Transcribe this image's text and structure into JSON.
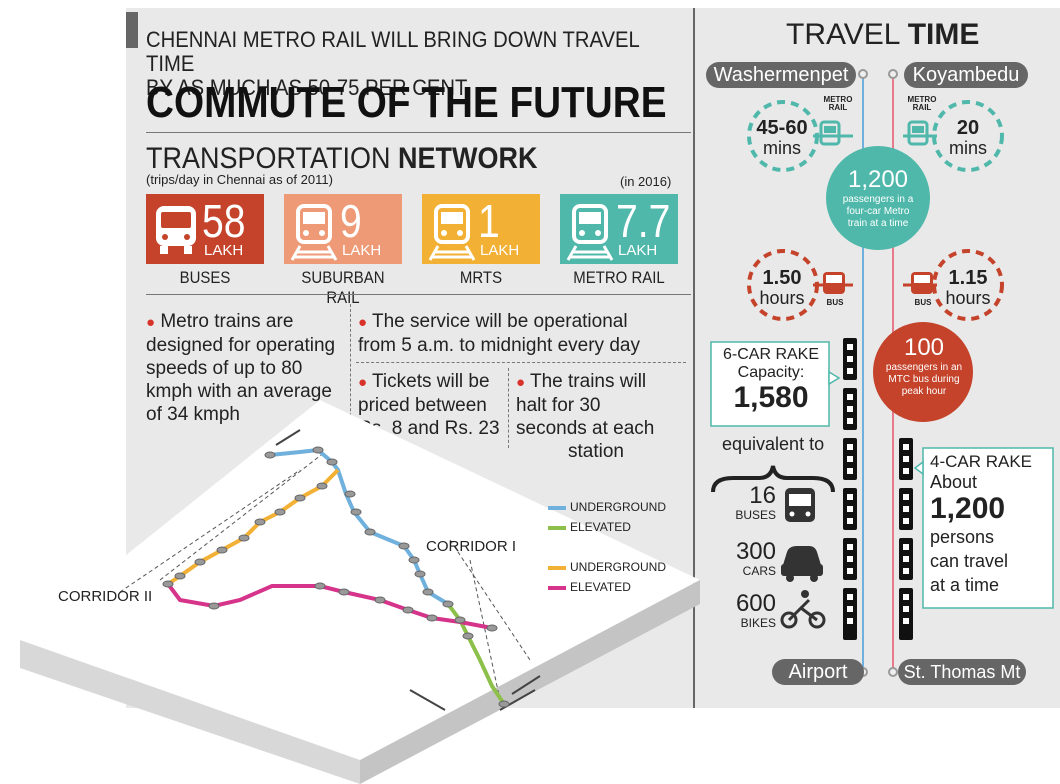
{
  "header": {
    "headline_line1": "CHENNAI METRO RAIL WILL BRING DOWN TRAVEL TIME",
    "headline_line2": "BY AS MUCH AS 50-75 PER CENT",
    "title": "COMMUTE OF THE FUTURE"
  },
  "network": {
    "title_light": "TRANSPORTATION ",
    "title_bold": "NETWORK",
    "subtitle": "(trips/day in Chennai as of 2011)",
    "note_2016": "(in 2016)",
    "modes": [
      {
        "value": "58",
        "unit": "LAKH",
        "label": "BUSES",
        "color": "#c4432a"
      },
      {
        "value": "9",
        "unit": "LAKH",
        "label": "SUBURBAN RAIL",
        "color": "#ef9a76"
      },
      {
        "value": "1",
        "unit": "LAKH",
        "label": "MRTS",
        "color": "#f2b035"
      },
      {
        "value": "7.7",
        "unit": "LAKH",
        "label": "METRO RAIL",
        "color": "#4fb8ab"
      }
    ]
  },
  "facts": {
    "speed": [
      "Metro trains are",
      "designed for operating",
      "speeds of up to 80",
      "kmph with an average",
      "of 34 kmph"
    ],
    "service": [
      "The service will be operational",
      "from 5 a.m. to midnight every day"
    ],
    "tickets": [
      "Tickets will be",
      "priced between",
      "Rs. 8 and Rs. 23"
    ],
    "halt": [
      "The trains will",
      "halt for 30",
      "seconds at each",
      "station"
    ]
  },
  "map": {
    "corridor1": "CORRIDOR I",
    "corridor2": "CORRIDOR II",
    "legend": [
      {
        "label": "UNDERGROUND",
        "color": "#6fb0dc"
      },
      {
        "label": "ELEVATED",
        "color": "#8dc04a"
      },
      {
        "label": "UNDERGROUND",
        "color": "#f2b035"
      },
      {
        "label": "ELEVATED",
        "color": "#d6338a"
      }
    ]
  },
  "travel": {
    "title_light": "TRAVEL ",
    "title_bold": "TIME",
    "left_top": "Washermenpet",
    "right_top": "Koyambedu",
    "left_bottom": "Airport",
    "right_bottom": "St. Thomas Mt",
    "metro_left": {
      "time": "45-60",
      "unit": "mins",
      "tag": "METRO RAIL"
    },
    "metro_right": {
      "time": "20",
      "unit": "mins",
      "tag": "METRO RAIL"
    },
    "metro_pass": {
      "count": "1,200",
      "text": [
        "passengers in a",
        "four-car Metro",
        "train at a time"
      ]
    },
    "bus_left": {
      "time": "1.50",
      "unit": "hours",
      "tag": "BUS"
    },
    "bus_right": {
      "time": "1.15",
      "unit": "hours",
      "tag": "BUS"
    },
    "bus_pass": {
      "count": "100",
      "text": [
        "passengers in an",
        "MTC bus during",
        "peak hour"
      ]
    },
    "six_car": {
      "title": "6-CAR RAKE",
      "cap_label": "Capacity:",
      "capacity": "1,580"
    },
    "equivalent": "equivalent to",
    "eq": [
      {
        "value": "16",
        "unit": "BUSES"
      },
      {
        "value": "300",
        "unit": "CARS"
      },
      {
        "value": "600",
        "unit": "BIKES"
      }
    ],
    "four_car": {
      "title": "4-CAR RAKE",
      "about": "About",
      "count": "1,200",
      "text": [
        "persons",
        "can travel",
        "at a time"
      ]
    }
  }
}
